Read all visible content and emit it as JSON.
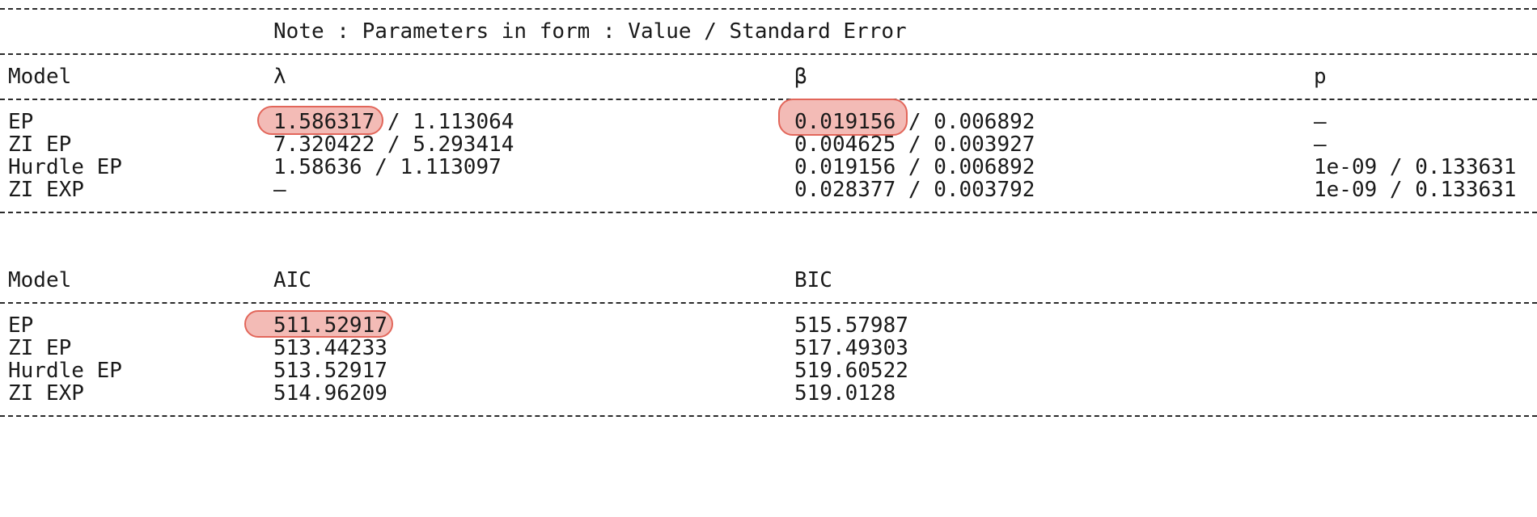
{
  "note": "Note : Parameters in form : Value / Standard Error",
  "params_table": {
    "headers": [
      "Model",
      "λ",
      "β",
      "p"
    ],
    "rows": [
      {
        "model": "EP",
        "lambda_value": "1.586317",
        "lambda_rest": " / 1.113064",
        "beta_value": "0.019156",
        "beta_rest": " / 0.006892",
        "p": "–"
      },
      {
        "model": "ZI EP",
        "lambda_value": "7.320422",
        "lambda_rest": " / 5.293414",
        "beta_value": "0.004625",
        "beta_rest": " / 0.003927",
        "p": "–"
      },
      {
        "model": "Hurdle EP",
        "lambda_value": "1.58636",
        "lambda_rest": " / 1.113097",
        "beta_value": "0.019156",
        "beta_rest": " / 0.006892",
        "p": "1e-09 / 0.133631"
      },
      {
        "model": "ZI EXP",
        "lambda_value": "–",
        "lambda_rest": "",
        "beta_value": "0.028377",
        "beta_rest": " / 0.003792",
        "p": "1e-09 / 0.133631"
      }
    ]
  },
  "ic_table": {
    "headers": [
      "Model",
      "AIC",
      "BIC"
    ],
    "rows": [
      {
        "model": "EP",
        "aic": "511.52917",
        "bic": "515.57987"
      },
      {
        "model": "ZI EP",
        "aic": "513.44233",
        "bic": "517.49303"
      },
      {
        "model": "Hurdle EP",
        "aic": "513.52917",
        "bic": "519.60522"
      },
      {
        "model": "ZI EXP",
        "aic": "514.96209",
        "bic": "519.0128"
      }
    ]
  },
  "highlight_color": "#e2665a"
}
